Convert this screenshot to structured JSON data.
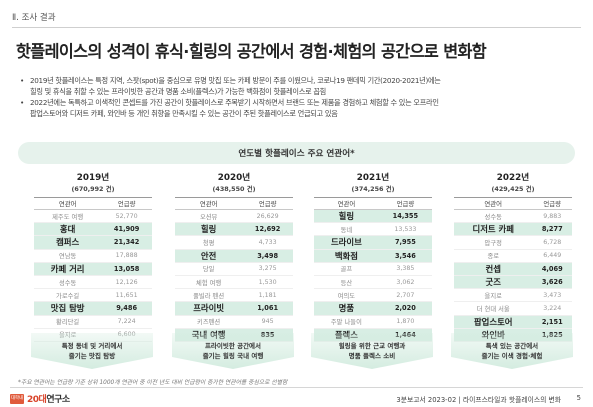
{
  "section_label": "Ⅱ. 조사 결과",
  "headline": "핫플레이스의 성격이 휴식·힐링의 공간에서 경험·체험의 공간으로 변화함",
  "bullets": [
    "2019년 핫플레이스는 특정 지역, 스팟(spot)을 중심으로 유명 맛집 또는 카페 방문이 주를 이뤘으나, 코로나19 팬데믹 기간(2020-2021년)에는",
    "힐링 및 휴식을 취할 수 있는 프라이빗한 공간과 명품 소비(플렉스)가 가능한 백화점이 핫플레이스로 꼽힘",
    "2022년에는 독특하고 이색적인 콘셉트를 가진 공간이 핫플레이스로 주목받기 시작하면서 브랜드 또는 제품을 경험하고 체험할 수 있는 오프라인",
    "팝업스토어와 디저트 카페, 와인바 등 개인 취향을 만족시킬 수 있는 공간이 주된 핫플레이스로 언급되고 있음"
  ],
  "banner_title": "연도별 핫플레이스 주요 연관어*",
  "years": [
    {
      "year": "2019년",
      "total": "(670,992 건)",
      "headers": [
        "연관어",
        "언급량"
      ],
      "rows": [
        {
          "word": "제주도 여행",
          "count": "52,770",
          "hl": false
        },
        {
          "word": "홍대",
          "count": "41,909",
          "hl": true
        },
        {
          "word": "캠퍼스",
          "count": "21,342",
          "hl": true
        },
        {
          "word": "연남동",
          "count": "17,888",
          "hl": false
        },
        {
          "word": "카페 거리",
          "count": "13,058",
          "hl": true
        },
        {
          "word": "성수동",
          "count": "12,126",
          "hl": false
        },
        {
          "word": "가로수길",
          "count": "11,651",
          "hl": false
        },
        {
          "word": "맛집 탐방",
          "count": "9,486",
          "hl": true
        },
        {
          "word": "황리단길",
          "count": "7,224",
          "hl": false
        },
        {
          "word": "을지로",
          "count": "6,600",
          "hl": false
        }
      ],
      "note": [
        "특정 동네 및 거리에서",
        "즐기는 맛집 탐방"
      ]
    },
    {
      "year": "2020년",
      "total": "(438,550 건)",
      "headers": [
        "연관어",
        "언급량"
      ],
      "rows": [
        {
          "word": "오션뷰",
          "count": "26,629",
          "hl": false
        },
        {
          "word": "힐링",
          "count": "12,692",
          "hl": true
        },
        {
          "word": "청평",
          "count": "4,733",
          "hl": false
        },
        {
          "word": "안전",
          "count": "3,498",
          "hl": true
        },
        {
          "word": "당일",
          "count": "3,275",
          "hl": false
        },
        {
          "word": "체험 여행",
          "count": "1,530",
          "hl": false
        },
        {
          "word": "풀빌라 펜션",
          "count": "1,181",
          "hl": false
        },
        {
          "word": "프라이빗",
          "count": "1,061",
          "hl": true
        },
        {
          "word": "키즈펜션",
          "count": "945",
          "hl": false
        },
        {
          "word": "국내 여행",
          "count": "835",
          "hl": true
        }
      ],
      "note": [
        "프라이빗한 공간에서",
        "즐기는 힐링 국내 여행"
      ]
    },
    {
      "year": "2021년",
      "total": "(374,256 건)",
      "headers": [
        "연관어",
        "언급량"
      ],
      "rows": [
        {
          "word": "힐링",
          "count": "14,355",
          "hl": true
        },
        {
          "word": "동네",
          "count": "13,533",
          "hl": false
        },
        {
          "word": "드라이브",
          "count": "7,955",
          "hl": true
        },
        {
          "word": "백화점",
          "count": "3,546",
          "hl": true
        },
        {
          "word": "골프",
          "count": "3,385",
          "hl": false
        },
        {
          "word": "등산",
          "count": "3,062",
          "hl": false
        },
        {
          "word": "여의도",
          "count": "2,707",
          "hl": false
        },
        {
          "word": "명품",
          "count": "2,020",
          "hl": true
        },
        {
          "word": "주말 나들이",
          "count": "1,870",
          "hl": false
        },
        {
          "word": "플렉스",
          "count": "1,464",
          "hl": true
        }
      ],
      "note": [
        "힐링을 위한 근교 여행과",
        "명품 플렉스 소비"
      ]
    },
    {
      "year": "2022년",
      "total": "(429,425 건)",
      "headers": [
        "연관어",
        "언급량"
      ],
      "rows": [
        {
          "word": "성수동",
          "count": "9,883",
          "hl": false
        },
        {
          "word": "디저트 카페",
          "count": "8,277",
          "hl": true
        },
        {
          "word": "압구정",
          "count": "6,728",
          "hl": false
        },
        {
          "word": "종로",
          "count": "6,449",
          "hl": false
        },
        {
          "word": "컨셉",
          "count": "4,069",
          "hl": true
        },
        {
          "word": "굿즈",
          "count": "3,626",
          "hl": true
        },
        {
          "word": "을지로",
          "count": "3,473",
          "hl": false
        },
        {
          "word": "더 현대 서울",
          "count": "3,224",
          "hl": false
        },
        {
          "word": "팝업스토어",
          "count": "2,151",
          "hl": true
        },
        {
          "word": "와인바",
          "count": "1,825",
          "hl": true
        }
      ],
      "note": [
        "특색 있는 공간에서",
        "즐기는 이색 경험·체험"
      ]
    }
  ],
  "footnote": "*주요 연관어는 언급량 기준 상위 1000개 연관어 중 이전 년도 대비 언급량이 증가한 연관어를 중심으로 선별함",
  "logo": {
    "box": "대학내일",
    "accent": "20대",
    "rest": "연구소"
  },
  "footer_right": "3분보고서 2023-02 | 라이프스타일과 핫플레이스의 변화",
  "page_number": "5",
  "colors": {
    "highlight_row": "#d8eee4",
    "banner": "#e6f2ec",
    "note_gradient": "#d4ece0",
    "logo_accent": "#d9442a"
  }
}
